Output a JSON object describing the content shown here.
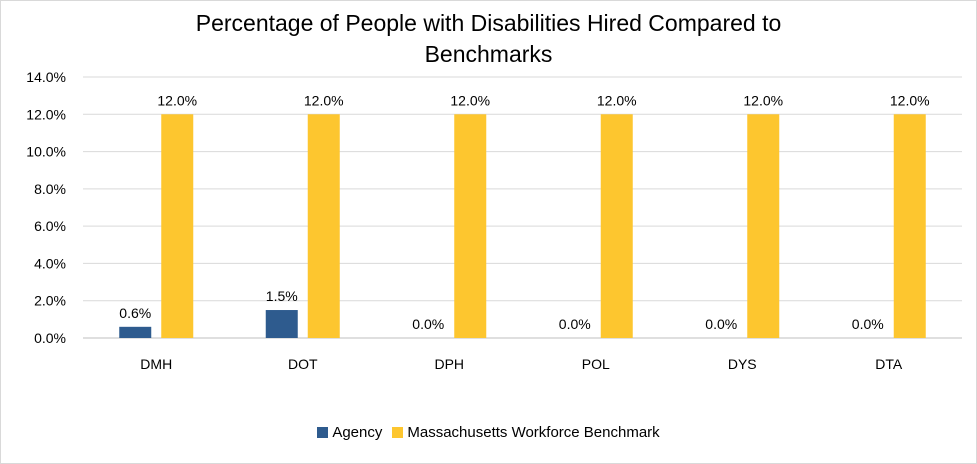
{
  "chart_data": {
    "type": "bar",
    "title": "Percentage of People with Disabilities Hired Compared to Benchmarks",
    "title_lines": [
      "Percentage of People with Disabilities Hired Compared to",
      "Benchmarks"
    ],
    "categories": [
      "DMH",
      "DOT",
      "DPH",
      "POL",
      "DYS",
      "DTA"
    ],
    "series": [
      {
        "name": "Agency",
        "color": "#2e5b8e",
        "values": [
          0.6,
          1.5,
          0.0,
          0.0,
          0.0,
          0.0
        ],
        "labels": [
          "0.6%",
          "1.5%",
          "0.0%",
          "0.0%",
          "0.0%",
          "0.0%"
        ]
      },
      {
        "name": "Massachusetts Workforce Benchmark",
        "color": "#fdc62f",
        "values": [
          12.0,
          12.0,
          12.0,
          12.0,
          12.0,
          12.0
        ],
        "labels": [
          "12.0%",
          "12.0%",
          "12.0%",
          "12.0%",
          "12.0%",
          "12.0%"
        ]
      }
    ],
    "yticks": [
      0,
      2,
      4,
      6,
      8,
      10,
      12,
      14
    ],
    "ytick_labels": [
      "0.0%",
      "2.0%",
      "4.0%",
      "6.0%",
      "8.0%",
      "10.0%",
      "12.0%",
      "14.0%"
    ],
    "ylim": [
      0,
      14
    ],
    "xlabel": "",
    "ylabel": "",
    "grid": true,
    "legend_position": "bottom"
  }
}
